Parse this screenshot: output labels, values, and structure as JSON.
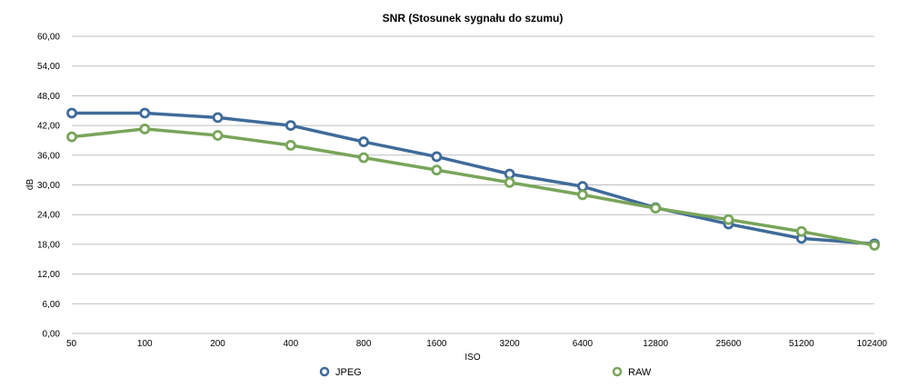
{
  "chart_data": {
    "type": "line",
    "title": "SNR (Stosunek sygnału do szumu)",
    "xlabel": "ISO",
    "ylabel": "dB",
    "categories": [
      "50",
      "100",
      "200",
      "400",
      "800",
      "1600",
      "3200",
      "6400",
      "12800",
      "25600",
      "51200",
      "102400"
    ],
    "y_ticks": [
      "0,00",
      "6,00",
      "12,00",
      "18,00",
      "24,00",
      "30,00",
      "36,00",
      "42,00",
      "48,00",
      "54,00",
      "60,00"
    ],
    "ylim": [
      0,
      60
    ],
    "grid": true,
    "legend_position": "bottom",
    "series": [
      {
        "name": "JPEG",
        "color": "#3f6b9a",
        "values": [
          44.5,
          44.5,
          43.6,
          42.0,
          38.7,
          35.7,
          32.2,
          29.7,
          25.4,
          22.1,
          19.2,
          18.1
        ]
      },
      {
        "name": "RAW",
        "color": "#78a55a",
        "values": [
          39.7,
          41.3,
          40.0,
          38.0,
          35.5,
          33.0,
          30.5,
          28.0,
          25.3,
          23.0,
          20.6,
          17.8
        ]
      }
    ]
  }
}
